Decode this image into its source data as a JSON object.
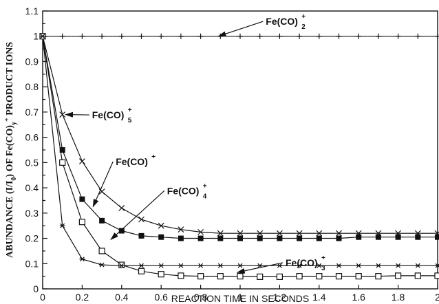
{
  "chart_data": {
    "type": "line",
    "xlabel": "REACTION TIME IN SECONDS",
    "ylabel_parts": [
      "ABUNDANCE (I/I",
      "0",
      ") OF Fe(CO)",
      "y",
      "+",
      " PRODUCT IONS"
    ],
    "xlim": [
      0,
      2
    ],
    "ylim": [
      0,
      1.1
    ],
    "xticks": [
      0,
      0.2,
      0.4,
      0.6,
      0.8,
      1,
      1.2,
      1.4,
      1.6,
      1.8,
      2
    ],
    "xtick_labels": [
      "0",
      "0.2",
      "0.4",
      "0.6",
      "0.8",
      "1",
      "1.2",
      "1.4",
      "1.6",
      "1.8",
      "2"
    ],
    "yticks": [
      0,
      0.05,
      0.1,
      0.15,
      0.2,
      0.25,
      0.3,
      0.35,
      0.4,
      0.45,
      0.5,
      0.55,
      0.6,
      0.65,
      0.7,
      0.75,
      0.8,
      0.85,
      0.9,
      0.95,
      1,
      1.05,
      1.1
    ],
    "ytick_labels": [
      "0",
      "0.1",
      "0.2",
      "0.3",
      "0.4",
      "0.5",
      "0.6",
      "0.7",
      "0.8",
      "0.9",
      "1",
      "1.1"
    ],
    "grid": false,
    "series": [
      {
        "marker": "plus",
        "x": [
          0,
          0.1,
          0.2,
          0.3,
          0.4,
          0.5,
          0.6,
          0.7,
          0.8,
          0.9,
          1.0,
          1.1,
          1.2,
          1.3,
          1.4,
          1.5,
          1.6,
          1.7,
          1.8,
          1.9,
          2.0
        ],
        "y": [
          1,
          1,
          1,
          1,
          1,
          1,
          1,
          1,
          1,
          1,
          1,
          1,
          1,
          1,
          1,
          1,
          1,
          1,
          1,
          1,
          1
        ]
      },
      {
        "marker": "x",
        "x": [
          0,
          0.1,
          0.2,
          0.3,
          0.4,
          0.5,
          0.6,
          0.7,
          0.8,
          0.9,
          1.0,
          1.1,
          1.2,
          1.3,
          1.4,
          1.5,
          1.6,
          1.7,
          1.8,
          1.9,
          2.0
        ],
        "y": [
          1,
          0.69,
          0.505,
          0.385,
          0.32,
          0.275,
          0.25,
          0.235,
          0.225,
          0.22,
          0.22,
          0.22,
          0.22,
          0.22,
          0.22,
          0.22,
          0.22,
          0.22,
          0.22,
          0.22,
          0.22
        ]
      },
      {
        "marker": "filled-square",
        "x": [
          0,
          0.1,
          0.2,
          0.3,
          0.4,
          0.5,
          0.6,
          0.7,
          0.8,
          0.9,
          1.0,
          1.1,
          1.2,
          1.3,
          1.4,
          1.5,
          1.6,
          1.7,
          1.8,
          1.9,
          2.0
        ],
        "y": [
          1,
          0.55,
          0.355,
          0.27,
          0.23,
          0.21,
          0.205,
          0.2,
          0.2,
          0.2,
          0.2,
          0.2,
          0.2,
          0.2,
          0.2,
          0.2,
          0.205,
          0.205,
          0.205,
          0.205,
          0.205
        ]
      },
      {
        "marker": "open-square",
        "x": [
          0,
          0.1,
          0.2,
          0.3,
          0.4,
          0.5,
          0.6,
          0.7,
          0.8,
          0.9,
          1.0,
          1.1,
          1.2,
          1.3,
          1.4,
          1.5,
          1.6,
          1.7,
          1.8,
          1.9,
          2.0
        ],
        "y": [
          1,
          0.5,
          0.265,
          0.15,
          0.095,
          0.07,
          0.058,
          0.052,
          0.05,
          0.05,
          0.05,
          0.048,
          0.048,
          0.05,
          0.05,
          0.05,
          0.05,
          0.05,
          0.052,
          0.052,
          0.052
        ]
      },
      {
        "marker": "asterisk",
        "x": [
          0,
          0.1,
          0.2,
          0.3,
          0.4,
          0.5,
          0.6,
          0.7,
          0.8,
          0.9,
          1.0,
          1.1,
          1.2,
          1.3,
          1.4,
          1.5,
          1.6,
          1.7,
          1.8,
          1.9,
          2.0
        ],
        "y": [
          1,
          0.25,
          0.118,
          0.095,
          0.092,
          0.092,
          0.092,
          0.092,
          0.092,
          0.092,
          0.092,
          0.092,
          0.092,
          0.092,
          0.092,
          0.092,
          0.092,
          0.092,
          0.092,
          0.092,
          0.092
        ]
      }
    ],
    "annotations": [
      {
        "base": "Fe(CO)",
        "sub": "2",
        "sup": "+",
        "text_xy": [
          1.13,
          1.045
        ],
        "arrow_to": [
          0.89,
          1.0
        ]
      },
      {
        "base": "Fe(CO)",
        "sub": "5",
        "sup": "+",
        "text_xy": [
          0.25,
          0.675
        ],
        "arrow_to": [
          0.115,
          0.69
        ]
      },
      {
        "base": "Fe(CO)",
        "sub": "",
        "sup": "+",
        "text_xy": [
          0.37,
          0.49
        ],
        "arrow_to": [
          0.255,
          0.325
        ]
      },
      {
        "base": "Fe(CO)",
        "sub": "4",
        "sup": "+",
        "text_xy": [
          0.63,
          0.375
        ],
        "arrow_to": [
          0.345,
          0.195
        ]
      },
      {
        "base": "Fe(CO)",
        "sub": "3",
        "sup": "+",
        "text_xy": [
          1.23,
          0.09
        ],
        "arrow_to": [
          0.985,
          0.065
        ]
      }
    ]
  }
}
